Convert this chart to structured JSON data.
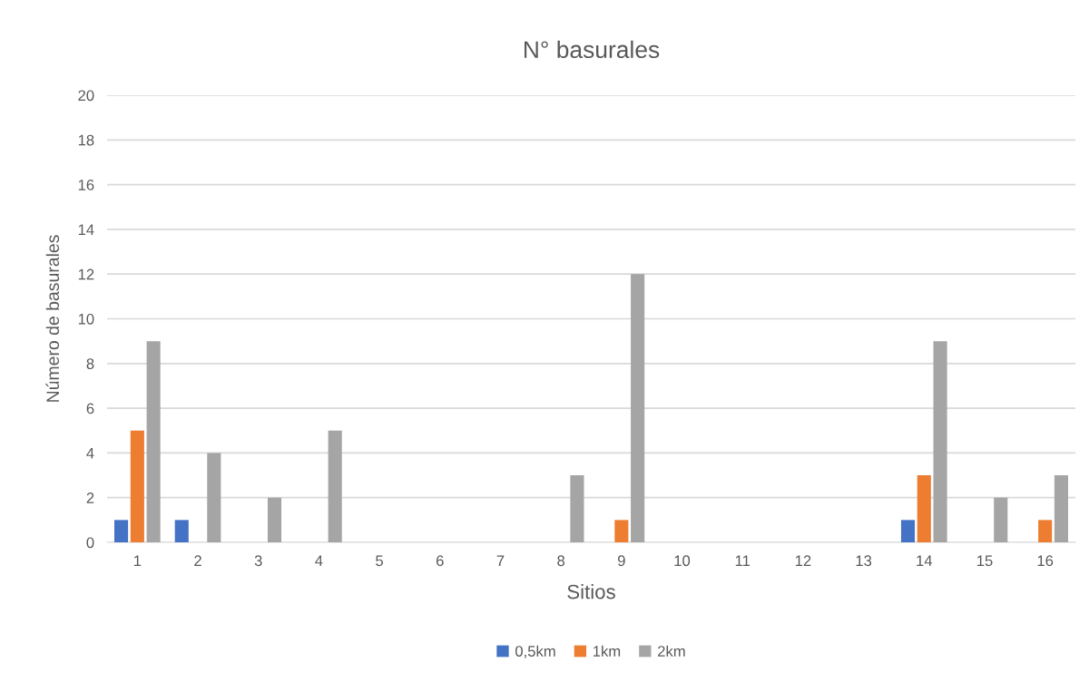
{
  "chart_data": {
    "type": "bar",
    "title": "N° basurales",
    "xlabel": "Sitios",
    "ylabel": "Número de basurales",
    "categories": [
      "1",
      "2",
      "3",
      "4",
      "5",
      "6",
      "7",
      "8",
      "9",
      "10",
      "11",
      "12",
      "13",
      "14",
      "15",
      "16"
    ],
    "series": [
      {
        "name": "0,5km",
        "color": "#4472c4",
        "values": [
          1,
          1,
          0,
          0,
          0,
          0,
          0,
          0,
          0,
          0,
          0,
          0,
          0,
          1,
          0,
          0
        ]
      },
      {
        "name": "1km",
        "color": "#ed7d31",
        "values": [
          5,
          0,
          0,
          0,
          0,
          0,
          0,
          0,
          1,
          0,
          0,
          0,
          0,
          3,
          0,
          1
        ]
      },
      {
        "name": "2km",
        "color": "#a5a5a5",
        "values": [
          9,
          4,
          2,
          5,
          0,
          0,
          0,
          3,
          12,
          0,
          0,
          0,
          0,
          9,
          2,
          3
        ]
      }
    ],
    "ylim": [
      0,
      20
    ],
    "yticks": [
      0,
      2,
      4,
      6,
      8,
      10,
      12,
      14,
      16,
      18,
      20
    ],
    "grid": "y",
    "legend": "bottom"
  }
}
